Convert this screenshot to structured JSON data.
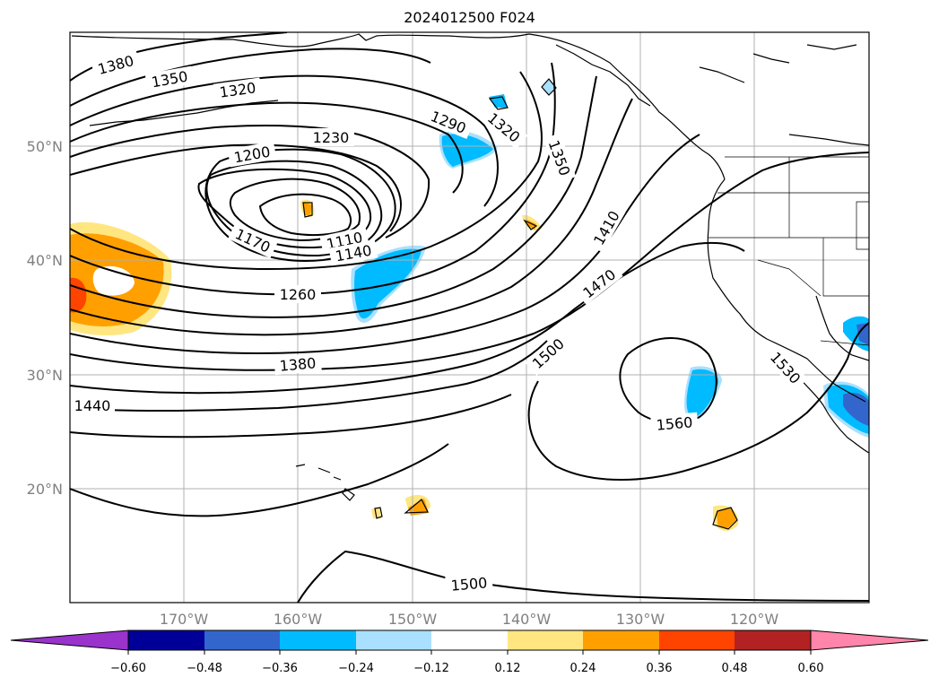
{
  "title": "2024012500 F024",
  "map": {
    "lat_labels": [
      "50°N",
      "40°N",
      "30°N",
      "20°N"
    ],
    "lon_labels": [
      "170°W",
      "160°W",
      "150°W",
      "140°W",
      "130°W",
      "120°W"
    ],
    "contour_labels": [
      "1380",
      "1350",
      "1320",
      "1230",
      "1200",
      "1290",
      "1320",
      "1350",
      "1170",
      "1110",
      "1140",
      "1410",
      "1260",
      "1470",
      "1380",
      "1500",
      "1440",
      "1560",
      "1530",
      "1500"
    ]
  },
  "colorbar": {
    "tick_labels": [
      "−0.60",
      "−0.48",
      "−0.36",
      "−0.24",
      "−0.12",
      "0.12",
      "0.24",
      "0.36",
      "0.48",
      "0.60"
    ],
    "colors": [
      "#9933cc",
      "#000099",
      "#3366cc",
      "#00bbff",
      "#aae0ff",
      "#ffffff",
      "#ffe680",
      "#ffa000",
      "#ff4400",
      "#b22222",
      "#ff85aa"
    ]
  }
}
